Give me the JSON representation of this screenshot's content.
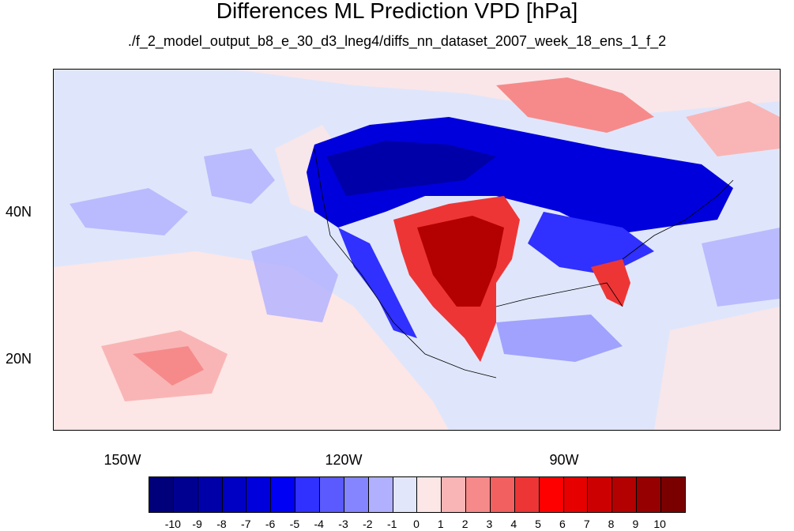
{
  "title": "Differences ML Prediction VPD [hPa]",
  "subtitle": "./f_2_model_output_b8_e_30_d3_lneg4/diffs_nn_dataset_2007_week_18_ens_1_f_2",
  "map": {
    "lat_labels": [
      "40N",
      "20N"
    ],
    "lon_labels": [
      "150W",
      "120W",
      "90W"
    ]
  },
  "colorbar": {
    "colors": [
      "#00007a",
      "#000090",
      "#0000a8",
      "#0000c4",
      "#0000dd",
      "#0000f5",
      "#3030ff",
      "#5a5aff",
      "#8585ff",
      "#b0b0ff",
      "#e2e6fa",
      "#fde6e6",
      "#f9b5b5",
      "#f68a8a",
      "#f26060",
      "#ee3535",
      "#ff0000",
      "#e60000",
      "#cc0000",
      "#b30000",
      "#960000",
      "#7a0000"
    ],
    "labels": [
      "-10",
      "-9",
      "-8",
      "-7",
      "-6",
      "-5",
      "-4",
      "-3",
      "-2",
      "-1",
      "0",
      "1",
      "2",
      "3",
      "4",
      "5",
      "6",
      "7",
      "8",
      "9",
      "10"
    ]
  }
}
